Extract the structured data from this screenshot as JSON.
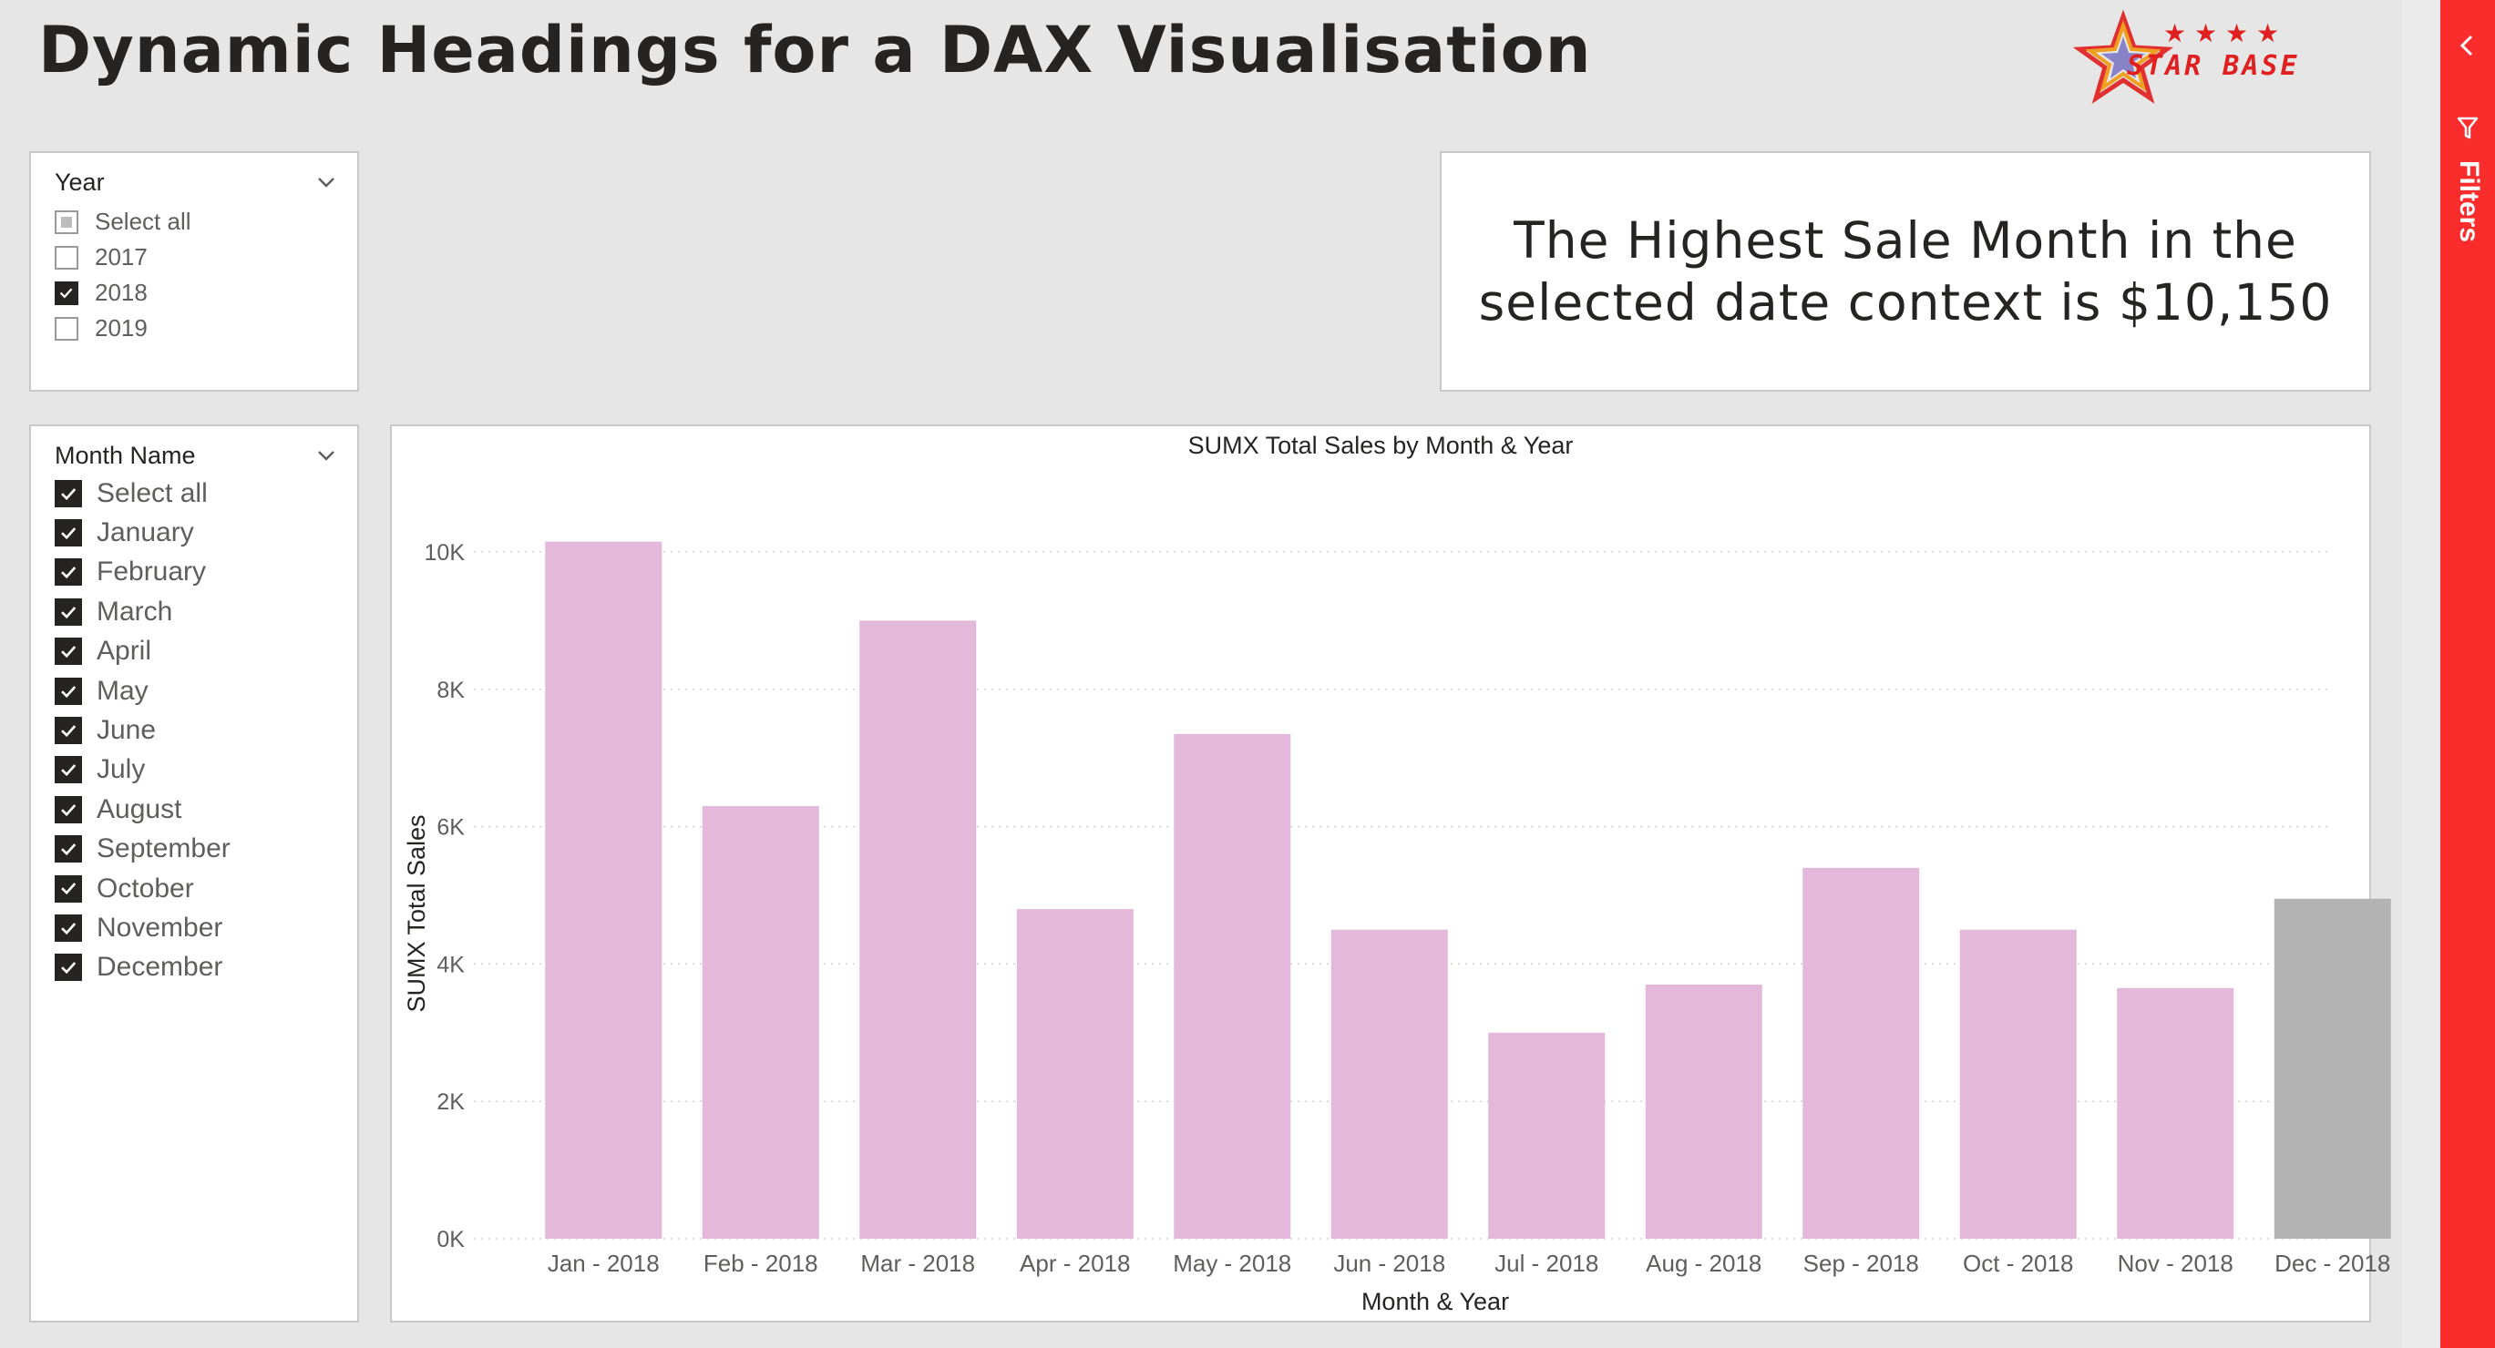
{
  "page": {
    "title": "Dynamic Headings for a DAX Visualisation"
  },
  "logo": {
    "text": "STAR BASE"
  },
  "year_slicer": {
    "title": "Year",
    "items": [
      {
        "label": "Select all",
        "state": "partial"
      },
      {
        "label": "2017",
        "state": "unchecked"
      },
      {
        "label": "2018",
        "state": "checked"
      },
      {
        "label": "2019",
        "state": "unchecked"
      }
    ]
  },
  "month_slicer": {
    "title": "Month Name",
    "items": [
      {
        "label": "Select all",
        "state": "checked"
      },
      {
        "label": "January",
        "state": "checked"
      },
      {
        "label": "February",
        "state": "checked"
      },
      {
        "label": "March",
        "state": "checked"
      },
      {
        "label": "April",
        "state": "checked"
      },
      {
        "label": "May",
        "state": "checked"
      },
      {
        "label": "June",
        "state": "checked"
      },
      {
        "label": "July",
        "state": "checked"
      },
      {
        "label": "August",
        "state": "checked"
      },
      {
        "label": "September",
        "state": "checked"
      },
      {
        "label": "October",
        "state": "checked"
      },
      {
        "label": "November",
        "state": "checked"
      },
      {
        "label": "December",
        "state": "checked"
      }
    ]
  },
  "card": {
    "text": "The Highest Sale Month in the selected date context is $10,150"
  },
  "filter_pane": {
    "label": "Filters"
  },
  "colors": {
    "bar": "#e4b8da",
    "bar_highlight": "#b3b3b3",
    "filter_pane": "#fb2c2c"
  },
  "chart_data": {
    "type": "bar",
    "title": "SUMX Total Sales by Month & Year",
    "xlabel": "Month & Year",
    "ylabel": "SUMX Total Sales",
    "ylim": [
      0,
      10000
    ],
    "yticks": [
      0,
      2000,
      4000,
      6000,
      8000,
      10000
    ],
    "ytick_labels": [
      "0K",
      "2K",
      "4K",
      "6K",
      "8K",
      "10K"
    ],
    "grid": true,
    "categories": [
      "Jan - 2018",
      "Feb - 2018",
      "Mar - 2018",
      "Apr - 2018",
      "May - 2018",
      "Jun - 2018",
      "Jul - 2018",
      "Aug - 2018",
      "Sep - 2018",
      "Oct - 2018",
      "Nov - 2018",
      "Dec - 2018"
    ],
    "values": [
      10150,
      6300,
      9000,
      4800,
      7350,
      4500,
      3000,
      3700,
      5400,
      4500,
      3650,
      4950
    ],
    "highlighted_category": "Dec - 2018"
  }
}
